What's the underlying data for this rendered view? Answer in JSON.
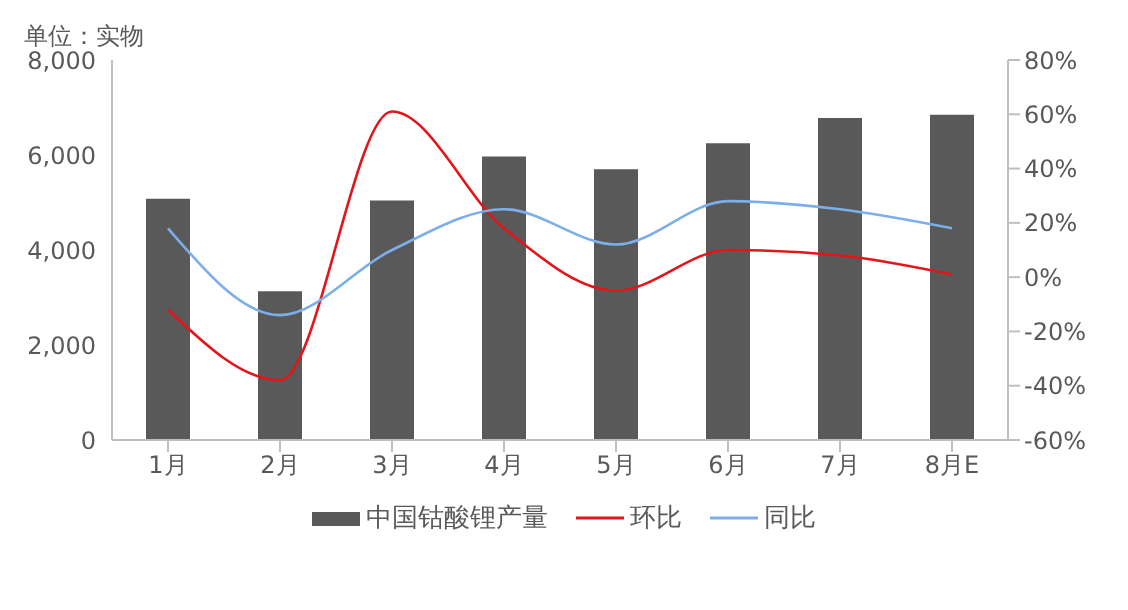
{
  "chart_data": {
    "type": "bar",
    "ylabel": "单位：实物",
    "categories": [
      "1月",
      "2月",
      "3月",
      "4月",
      "5月",
      "6月",
      "7月",
      "8月E"
    ],
    "series": [
      {
        "name": "中国钴酸锂产量",
        "color": "#595959",
        "values": [
          5080,
          3130,
          5040,
          5970,
          5700,
          6250,
          6780,
          6850
        ]
      },
      {
        "name": "环比",
        "type": "line",
        "axis": "y2",
        "color": "#e3151a",
        "values": [
          -12,
          -38,
          61,
          18,
          -5,
          10,
          8,
          1
        ]
      },
      {
        "name": "同比",
        "type": "line",
        "axis": "y2",
        "color": "#7cafea",
        "values": [
          18,
          -14,
          10,
          25,
          12,
          28,
          25,
          18
        ]
      }
    ],
    "ylim": [
      0,
      8000
    ],
    "yticks": [
      0,
      {
        "value": 2000,
        "label": "2,000"
      },
      {
        "value": 4000,
        "label": "4,000"
      },
      {
        "value": 6000,
        "label": "6,000"
      },
      {
        "value": 8000,
        "label": "8,000"
      }
    ],
    "y2lim": [
      -60,
      80
    ],
    "y2ticks": [
      {
        "value": -60,
        "label": "-60%"
      },
      {
        "value": -40,
        "label": "-40%"
      },
      {
        "value": -20,
        "label": "-20%"
      },
      {
        "value": 0,
        "label": "0%"
      },
      {
        "value": 20,
        "label": "20%"
      },
      {
        "value": 40,
        "label": "40%"
      },
      {
        "value": 60,
        "label": "60%"
      },
      {
        "value": 80,
        "label": "80%"
      }
    ],
    "grid": false,
    "legend": "bottom",
    "marker": "none",
    "line_style": "solid"
  }
}
